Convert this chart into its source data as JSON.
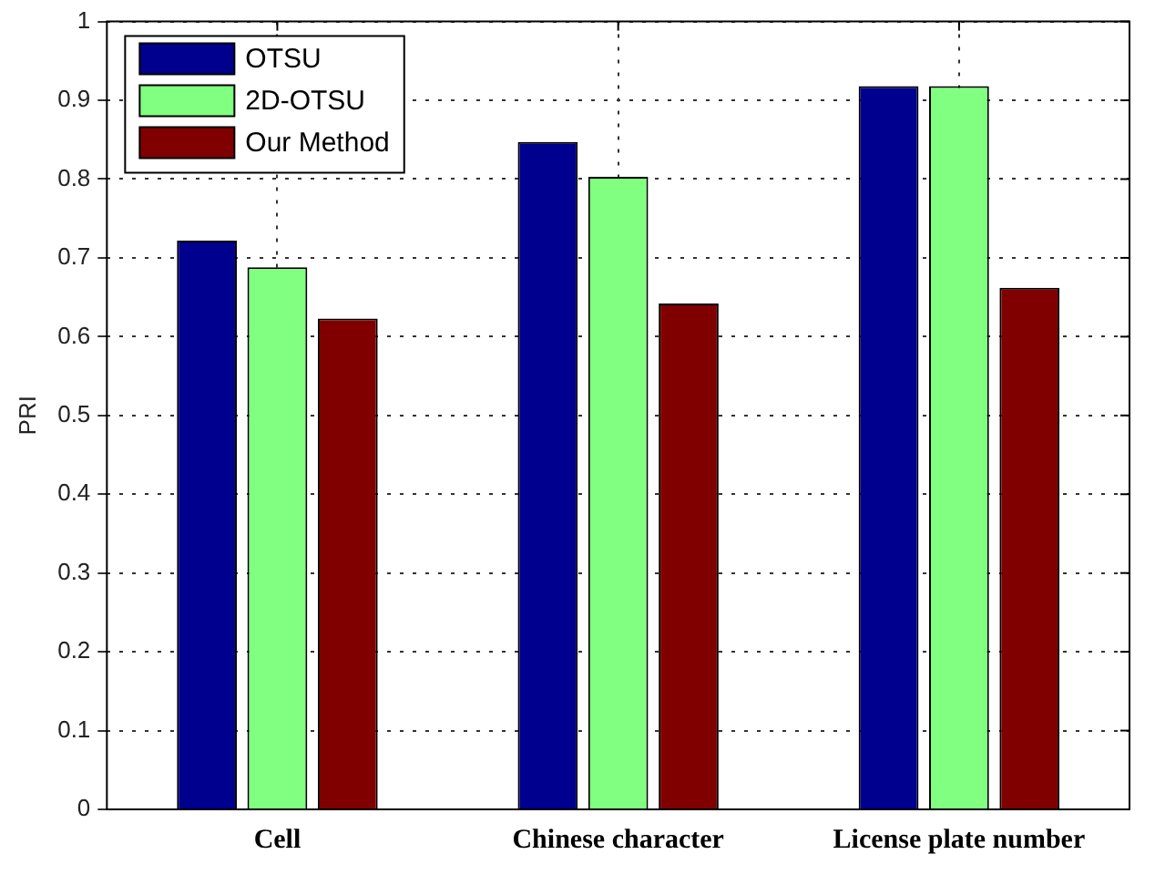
{
  "chart_data": {
    "type": "bar",
    "ylabel": "PRI",
    "categories": [
      "Cell",
      "Chinese character",
      "License plate number"
    ],
    "series": [
      {
        "name": "OTSU",
        "color": "#00008f",
        "values": [
          0.722,
          0.847,
          0.918
        ]
      },
      {
        "name": "2D-OTSU",
        "color": "#80ff80",
        "values": [
          0.688,
          0.803,
          0.918
        ]
      },
      {
        "name": "Our Method",
        "color": "#800000",
        "values": [
          0.623,
          0.642,
          0.662
        ]
      }
    ],
    "ylim": [
      0,
      1
    ],
    "yticks": [
      0,
      0.1,
      0.2,
      0.3,
      0.4,
      0.5,
      0.6,
      0.7,
      0.8,
      0.9,
      1
    ],
    "grid": true,
    "legend": "top left"
  }
}
